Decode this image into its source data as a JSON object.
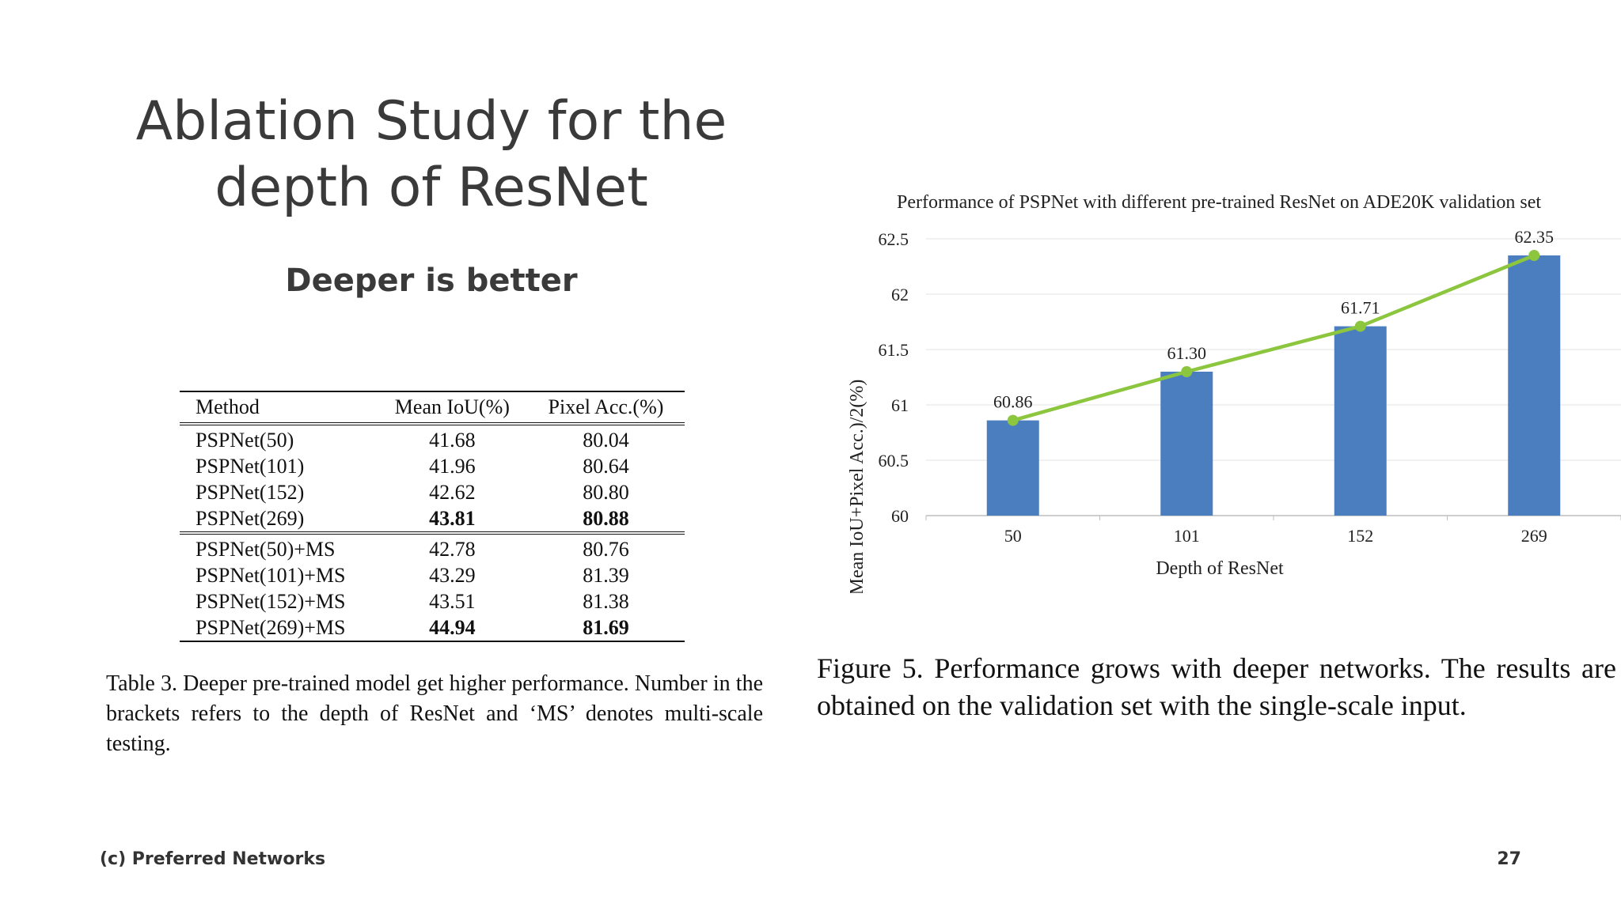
{
  "slide": {
    "title_line1": "Ablation Study for the",
    "title_line2": "depth of ResNet",
    "subtitle": "Deeper is better",
    "footer_left": "(c) Preferred Networks",
    "page_number": "27"
  },
  "table": {
    "headers": [
      "Method",
      "Mean IoU(%)",
      "Pixel Acc.(%)"
    ],
    "rows": [
      {
        "method": "PSPNet(50)",
        "miou": "41.68",
        "pixacc": "80.04"
      },
      {
        "method": "PSPNet(101)",
        "miou": "41.96",
        "pixacc": "80.64"
      },
      {
        "method": "PSPNet(152)",
        "miou": "42.62",
        "pixacc": "80.80"
      },
      {
        "method": "PSPNet(269)",
        "miou": "43.81",
        "pixacc": "80.88"
      },
      {
        "method": "PSPNet(50)+MS",
        "miou": "42.78",
        "pixacc": "80.76"
      },
      {
        "method": "PSPNet(101)+MS",
        "miou": "43.29",
        "pixacc": "81.39"
      },
      {
        "method": "PSPNet(152)+MS",
        "miou": "43.51",
        "pixacc": "81.38"
      },
      {
        "method": "PSPNet(269)+MS",
        "miou": "44.94",
        "pixacc": "81.69"
      }
    ],
    "caption": "Table 3. Deeper pre-trained model get higher performance. Number in the brackets refers to the depth of ResNet and ‘MS’ denotes multi-scale testing."
  },
  "figure_caption": "Figure 5. Performance grows with deeper networks. The results are obtained on the validation set with the single-scale input.",
  "chart_data": {
    "type": "bar",
    "title": "Performance of PSPNet with different pre-trained ResNet on ADE20K validation set",
    "xlabel": "Depth of ResNet",
    "ylabel": "(Mean IoU+Pixel Acc.)/2(%)",
    "categories": [
      "50",
      "101",
      "152",
      "269"
    ],
    "values": [
      60.86,
      61.3,
      61.71,
      62.35
    ],
    "data_labels": [
      "60.86",
      "61.30",
      "61.71",
      "62.35"
    ],
    "overlay_line": true,
    "ylim": [
      60,
      62.5
    ],
    "yticks": [
      "60",
      "60.5",
      "61",
      "61.5",
      "62",
      "62.5"
    ],
    "grid": true,
    "bar_color": "#4a7ebf",
    "line_color": "#8cc63f"
  }
}
